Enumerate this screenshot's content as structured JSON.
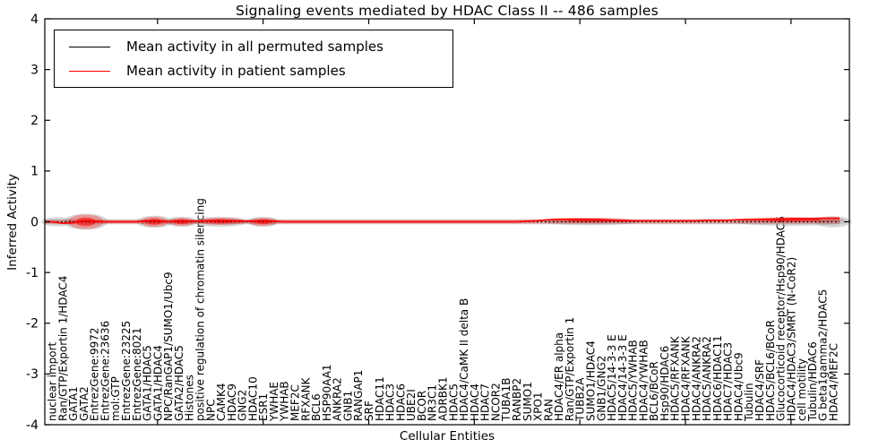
{
  "chart_data": {
    "type": "line",
    "title": "Signaling events mediated by HDAC Class II -- 486 samples",
    "xlabel": "Cellular Entities",
    "ylabel": "Inferred Activity",
    "ylim": [
      -4,
      4
    ],
    "yticks": [
      -4,
      -3,
      -2,
      -1,
      0,
      1,
      2,
      3,
      4
    ],
    "grid": false,
    "legend_position": "upper left",
    "categories": [
      "nuclear import",
      "Ran/GTP/Exportin 1/HDAC4",
      "GATA1",
      "GATA2",
      "EntrezGene:9972",
      "EntrezGene:23636",
      "mol:GTP",
      "EntrezGene:23225",
      "EntrezGene:8021",
      "GATA1/HDAC5",
      "GATA1/HDAC4",
      "NPC/RanGAP1/SUMO1/Ubc9",
      "GATA2/HDAC5",
      "Histones",
      "positive regulation of chromatin silencing",
      "NPC",
      "CAMK4",
      "HDAC9",
      "GNG2",
      "HDAC10",
      "ESR1",
      "YWHAE",
      "YWHAB",
      "MEF2C",
      "RFXANK",
      "BCL6",
      "HSP90AA1",
      "ANKRA2",
      "GNB1",
      "RANGAP1",
      "SRF",
      "HDAC11",
      "HDAC3",
      "HDAC6",
      "UBE2I",
      "BCOR",
      "NR3C1",
      "ADRBK1",
      "HDAC5",
      "HDAC4/CaMK II delta B",
      "HDAC4",
      "HDAC7",
      "NCOR2",
      "TUBA1B",
      "RANBP2",
      "SUMO1",
      "XPO1",
      "RAN",
      "HDAC4/ER alpha",
      "Ran/GTP/Exportin 1",
      "TUBB2A",
      "SUMO1/HDAC4",
      "GNB1/GNG2",
      "HDAC5/14-3-3 E",
      "HDAC4/14-3-3 E",
      "HDAC5/YWHAB",
      "HDAC4/YWHAB",
      "BCL6/BCoR",
      "Hsp90/HDAC6",
      "HDAC5/RFXANK",
      "HDAC4/RFXANK",
      "HDAC4/ANKRA2",
      "HDAC5/ANKRA2",
      "HDAC6/HDAC11",
      "HDAC7/HDAC3",
      "HDAC4/Ubc9",
      "Tubulin",
      "HDAC4/SRF",
      "HDAC5/BCL6/BCoR",
      "Glucocorticoid receptor/Hsp90/HDAC6",
      "HDAC4/HDAC3/SMRT (N-CoR2)",
      "cell motility",
      "Tubulin/HDAC6",
      "G beta1gamma2/HDAC5",
      "HDAC4/MEF2C"
    ],
    "series": [
      {
        "name": "Mean activity in all permuted samples",
        "color": "#000000",
        "style": "dotted",
        "values": [
          0,
          0,
          0,
          0,
          0,
          0,
          0,
          0,
          0,
          0,
          0,
          0,
          0,
          0,
          0,
          0,
          0,
          0,
          0,
          0,
          0,
          0,
          0,
          0,
          0,
          0,
          0,
          0,
          0,
          0,
          0,
          0,
          0,
          0,
          0,
          0,
          0,
          0,
          0,
          0,
          0,
          0,
          0,
          0,
          0,
          0,
          0,
          0,
          0,
          0,
          0,
          0,
          0,
          0,
          0,
          0,
          0,
          0,
          0,
          0,
          0,
          0,
          0,
          0,
          0,
          0,
          0,
          0,
          0,
          0,
          0,
          0,
          0,
          0,
          0
        ]
      },
      {
        "name": "Mean activity in patient samples",
        "color": "#ff0000",
        "style": "solid",
        "values": [
          0,
          -0.03,
          -0.02,
          0.02,
          0.01,
          0,
          0,
          0,
          0,
          0.02,
          0.02,
          0,
          0.02,
          0.01,
          0.01,
          0.02,
          0.02,
          0.02,
          0.01,
          0.01,
          0.02,
          0.01,
          0,
          0,
          0,
          0,
          0,
          0,
          0,
          0,
          0,
          0,
          0,
          0,
          0,
          0,
          0,
          0,
          0,
          0,
          0,
          0,
          0,
          0,
          0,
          0.01,
          0.02,
          0.04,
          0.05,
          0.05,
          0.05,
          0.04,
          0.04,
          0.03,
          0.02,
          0.02,
          0.02,
          0.02,
          0.02,
          0.02,
          0.02,
          0.02,
          0.03,
          0.03,
          0.03,
          0.04,
          0.04,
          0.04,
          0.05,
          0.05,
          0.06,
          0.06,
          0.06,
          0.07,
          0.07
        ]
      }
    ],
    "bands": {
      "permuted": {
        "color": "#9e9e9e",
        "half_width": 0.05,
        "bulges": [
          {
            "at": 0.5,
            "w": 3,
            "h": 0.09
          },
          {
            "at": 3.2,
            "w": 4.2,
            "h": 0.16
          },
          {
            "at": 9.7,
            "w": 3.4,
            "h": 0.12
          },
          {
            "at": 12.3,
            "w": 3,
            "h": 0.1
          },
          {
            "at": 16,
            "w": 5,
            "h": 0.1
          },
          {
            "at": 20,
            "w": 3,
            "h": 0.1
          },
          {
            "at": 51,
            "w": 9,
            "h": 0.07
          },
          {
            "at": 70,
            "w": 11,
            "h": 0.08
          },
          {
            "at": 74,
            "w": 3.5,
            "h": 0.11
          }
        ]
      },
      "patient": {
        "color": "#ff0000",
        "half_width": 0.04,
        "bulges": [
          {
            "at": 3.2,
            "w": 3.4,
            "h": 0.14,
            "cy": 0
          },
          {
            "at": 9.7,
            "w": 2.6,
            "h": 0.1,
            "cy": 0
          },
          {
            "at": 12.3,
            "w": 2.4,
            "h": 0.08,
            "cy": 0
          },
          {
            "at": 16,
            "w": 4.5,
            "h": 0.07,
            "cy": 0.01
          },
          {
            "at": 20,
            "w": 2.6,
            "h": 0.08,
            "cy": 0
          },
          {
            "at": 51,
            "w": 8,
            "h": 0.05,
            "cy": 0.03
          },
          {
            "at": 70,
            "w": 10,
            "h": 0.05,
            "cy": 0.04
          }
        ]
      }
    }
  }
}
